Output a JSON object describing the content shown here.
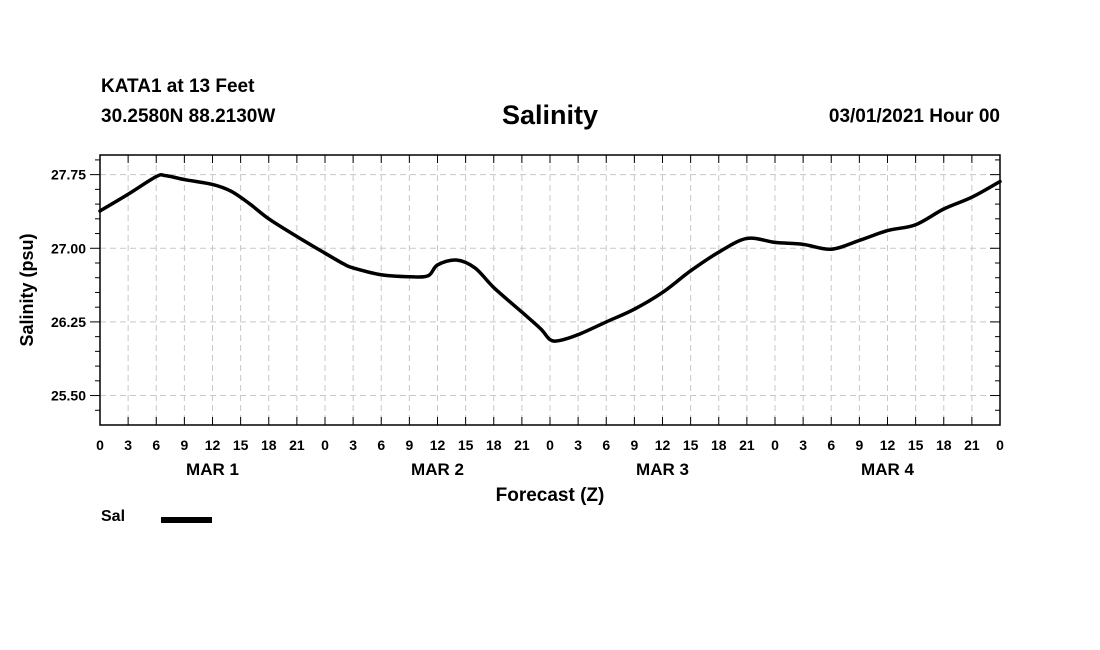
{
  "header": {
    "station": "KATA1 at 13 Feet",
    "coords": "30.2580N 88.2130W",
    "title": "Salinity",
    "datetime": "03/01/2021 Hour 00"
  },
  "legend": {
    "label": "Sal",
    "color": "#000000"
  },
  "chart_data": {
    "type": "line",
    "title": "Salinity",
    "xlabel": "Forecast (Z)",
    "ylabel": "Salinity (psu)",
    "xlim": [
      0,
      96
    ],
    "ylim": [
      25.2,
      27.95
    ],
    "y_ticks": [
      "25.50",
      "26.25",
      "27.00",
      "27.75"
    ],
    "y_tick_values": [
      25.5,
      26.25,
      27.0,
      27.75
    ],
    "x_hour_labels": [
      "0",
      "3",
      "6",
      "9",
      "12",
      "15",
      "18",
      "21",
      "0",
      "3",
      "6",
      "9",
      "12",
      "15",
      "18",
      "21",
      "0",
      "3",
      "6",
      "9",
      "12",
      "15",
      "18",
      "21",
      "0",
      "3",
      "6",
      "9",
      "12",
      "15",
      "18",
      "21",
      "0"
    ],
    "day_labels": [
      {
        "label": "MAR 1",
        "hour": 12
      },
      {
        "label": "MAR 2",
        "hour": 36
      },
      {
        "label": "MAR 3",
        "hour": 60
      },
      {
        "label": "MAR 4",
        "hour": 84
      }
    ],
    "grid": true,
    "legend_position": "bottom-left",
    "series": [
      {
        "name": "Sal",
        "color": "#000000",
        "x": [
          0,
          3,
          6,
          7,
          9,
          12,
          14,
          16,
          18,
          21,
          24,
          26,
          27,
          30,
          33,
          35,
          36,
          38,
          40,
          42,
          45,
          47,
          48,
          49,
          51,
          54,
          57,
          60,
          63,
          66,
          69,
          72,
          75,
          78,
          81,
          84,
          87,
          90,
          93,
          96
        ],
        "values": [
          27.38,
          27.55,
          27.73,
          27.74,
          27.7,
          27.65,
          27.58,
          27.45,
          27.3,
          27.12,
          26.95,
          26.84,
          26.8,
          26.73,
          26.71,
          26.72,
          26.83,
          26.88,
          26.8,
          26.6,
          26.35,
          26.18,
          26.07,
          26.06,
          26.12,
          26.25,
          26.38,
          26.55,
          26.77,
          26.96,
          27.1,
          27.06,
          27.04,
          26.99,
          27.08,
          27.18,
          27.24,
          27.4,
          27.52,
          27.68
        ]
      }
    ]
  }
}
